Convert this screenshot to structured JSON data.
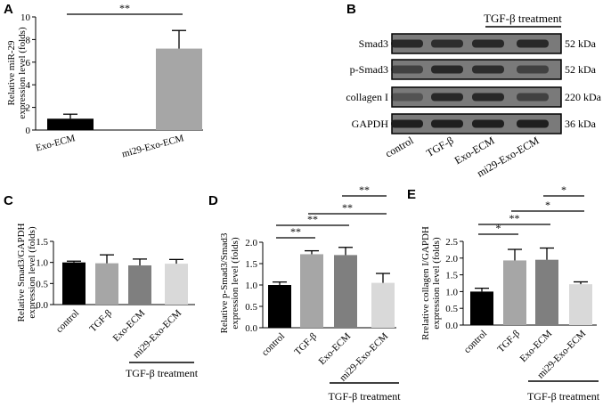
{
  "colors": {
    "black": "#000000",
    "light_gray": "#a6a6a6",
    "mid_gray": "#7f7f7f",
    "pale_gray": "#d9d9d9",
    "blot_band": "#1a1a1a",
    "blot_bg": "#7a7a7a"
  },
  "chart_data": [
    {
      "panel": "A",
      "type": "bar",
      "categories": [
        "Exo-ECM",
        "mi29-Exo-ECM"
      ],
      "values": [
        1.0,
        7.2
      ],
      "errors": [
        0.4,
        1.6
      ],
      "colors": [
        "#000000",
        "#a6a6a6"
      ],
      "ylabel": [
        "Relative miR-29",
        "expression  level (folds)"
      ],
      "ylim": [
        0,
        10
      ],
      "yticks": [
        "0",
        "2",
        "4",
        "6",
        "8",
        "10"
      ],
      "significance": [
        {
          "from": 0,
          "to": 1,
          "label": "**"
        }
      ]
    },
    {
      "panel": "C",
      "type": "bar",
      "categories": [
        "control",
        "TGF-β",
        "Exo-ECM",
        "mi29-Exo-ECM"
      ],
      "values": [
        1.0,
        0.98,
        0.93,
        0.97
      ],
      "errors": [
        0.03,
        0.2,
        0.15,
        0.1
      ],
      "colors": [
        "#000000",
        "#a6a6a6",
        "#7f7f7f",
        "#d9d9d9"
      ],
      "ylabel": [
        "Relative Smad3/GAPDH",
        "expression  level (folds)"
      ],
      "ylim": [
        0,
        1.5
      ],
      "yticks": [
        "0.0",
        "0.5",
        "1.0",
        "1.5"
      ],
      "significance": [],
      "treatment_label": "TGF-β treatment"
    },
    {
      "panel": "D",
      "type": "bar",
      "categories": [
        "control",
        "TGF-β",
        "Exo-ECM",
        "mi29-Exo-ECM"
      ],
      "values": [
        1.0,
        1.72,
        1.7,
        1.05
      ],
      "errors": [
        0.07,
        0.08,
        0.18,
        0.22
      ],
      "colors": [
        "#000000",
        "#a6a6a6",
        "#7f7f7f",
        "#d9d9d9"
      ],
      "ylabel": [
        "Relative p-Smad3/Smad3",
        "expression  level (folds)"
      ],
      "ylim": [
        0,
        2.0
      ],
      "yticks": [
        "0.0",
        "0.5",
        "1.0",
        "1.5",
        "2.0"
      ],
      "significance": [
        {
          "from": 0,
          "to": 1,
          "label": "**"
        },
        {
          "from": 0,
          "to": 2,
          "label": "**"
        },
        {
          "from": 1,
          "to": 3,
          "label": "**"
        },
        {
          "from": 2,
          "to": 3,
          "label": "**"
        }
      ],
      "treatment_label": "TGF-β treatment"
    },
    {
      "panel": "E",
      "type": "bar",
      "categories": [
        "control",
        "TGF-β",
        "Exo-ECM",
        "mi29-Exo-ECM"
      ],
      "values": [
        1.0,
        1.93,
        1.95,
        1.22
      ],
      "errors": [
        0.1,
        0.33,
        0.35,
        0.07
      ],
      "colors": [
        "#000000",
        "#a6a6a6",
        "#7f7f7f",
        "#d9d9d9"
      ],
      "ylabel": [
        "Rrelative collagen I/GAPDH",
        "expression  level (folds)"
      ],
      "ylim": [
        0,
        2.5
      ],
      "yticks": [
        "0.0",
        "0.5",
        "1.0",
        "1.5",
        "2.0",
        "2.5"
      ],
      "significance": [
        {
          "from": 0,
          "to": 1,
          "label": "*"
        },
        {
          "from": 0,
          "to": 2,
          "label": "**"
        },
        {
          "from": 1,
          "to": 3,
          "label": "*"
        },
        {
          "from": 2,
          "to": 3,
          "label": "*"
        }
      ],
      "treatment_label": "TGF-β treatment"
    }
  ],
  "panel_labels": [
    "A",
    "B",
    "C",
    "D",
    "E"
  ],
  "blot": {
    "panel": "B",
    "treatment_label": "TGF-β treatment",
    "rows": [
      {
        "name": "Smad3",
        "kda": "52 kDa",
        "intensity": [
          0.85,
          0.8,
          0.85,
          0.85
        ]
      },
      {
        "name": "p-Smad3",
        "kda": "52 kDa",
        "intensity": [
          0.6,
          0.85,
          0.8,
          0.6
        ]
      },
      {
        "name": "collagen I",
        "kda": "220 kDa",
        "intensity": [
          0.4,
          0.85,
          0.85,
          0.6
        ]
      },
      {
        "name": "GAPDH",
        "kda": "36 kDa",
        "intensity": [
          0.95,
          0.95,
          0.95,
          0.95
        ]
      }
    ],
    "lanes": [
      "control",
      "TGF-β",
      "Exo-ECM",
      "mi29-Exo-ECM"
    ]
  }
}
